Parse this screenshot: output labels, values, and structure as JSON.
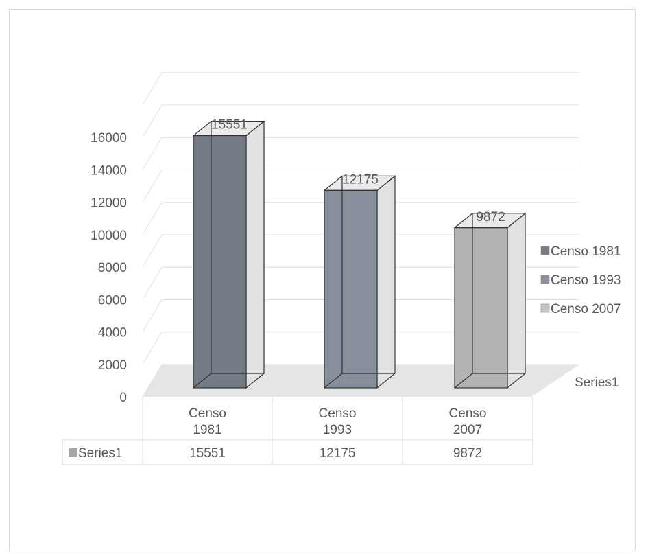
{
  "chart_data": {
    "type": "bar",
    "subtype": "3d-clustered-column",
    "title": "",
    "xlabel": "",
    "ylabel": "",
    "categories": [
      "Censo 1981",
      "Censo 1993",
      "Censo 2007"
    ],
    "category_labels": [
      [
        "Censo",
        "1981"
      ],
      [
        "Censo",
        "1993"
      ],
      [
        "Censo",
        "2007"
      ]
    ],
    "series": [
      {
        "name": "Series1",
        "values": [
          15551,
          12175,
          9872
        ]
      }
    ],
    "data_labels": [
      "15551",
      "12175",
      "9872"
    ],
    "ylim": [
      0,
      16000
    ],
    "yticks": [
      0,
      2000,
      4000,
      6000,
      8000,
      10000,
      12000,
      14000,
      16000
    ],
    "ytick_labels": [
      "0",
      "2000",
      "4000",
      "6000",
      "8000",
      "10000",
      "12000",
      "14000",
      "16000"
    ],
    "depth_axis_label": "Series1",
    "grid": true,
    "legend": {
      "position": "right",
      "entries": [
        "Censo 1981",
        "Censo 1993",
        "Censo 2007"
      ]
    },
    "data_table": {
      "series_label": "Series1",
      "values": [
        "15551",
        "12175",
        "9872"
      ]
    },
    "colors": {
      "bars": [
        "#747a86",
        "#878e9c",
        "#b3b3b3"
      ],
      "side": "#e2e2e2",
      "top": "#eaeaea",
      "floor": "#e5e5e5",
      "grid": "#e0e0e0",
      "legend_key": [
        "#767b85",
        "#8a8f9b",
        "#c4c4c4"
      ],
      "table_key": "#a6a6a6",
      "text": "#595959"
    }
  }
}
